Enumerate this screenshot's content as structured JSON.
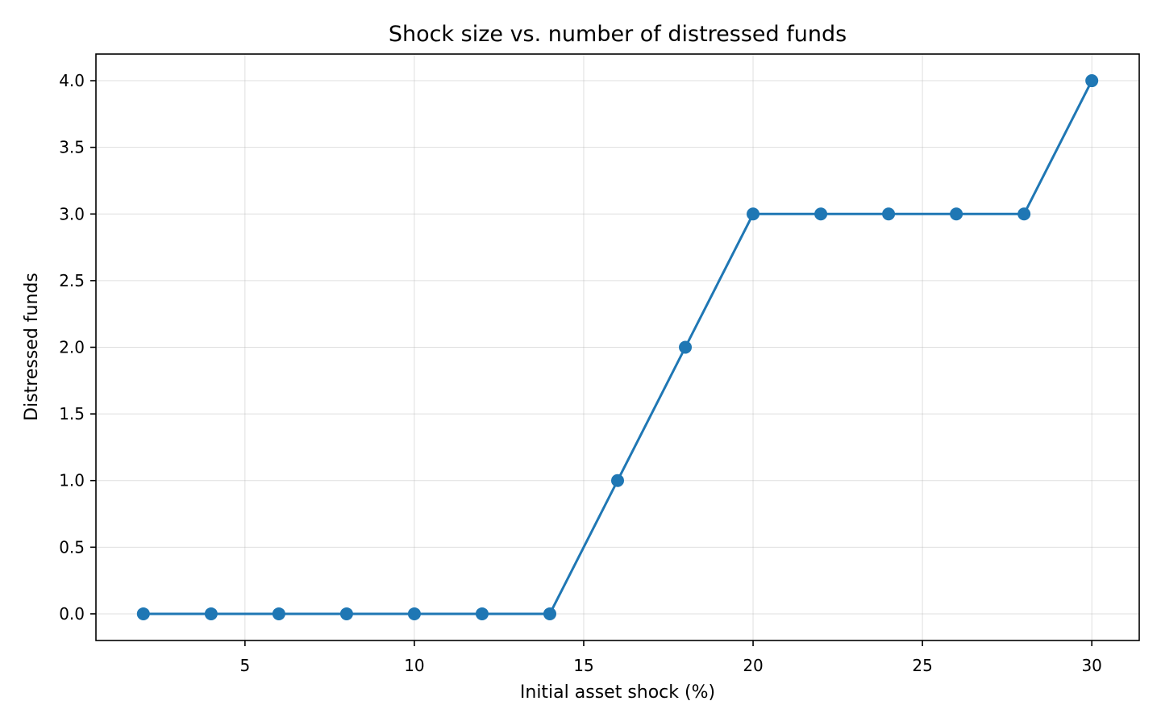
{
  "chart_data": {
    "type": "line",
    "title": "Shock size vs. number of distressed funds",
    "xlabel": "Initial asset shock (%)",
    "ylabel": "Distressed funds",
    "xlim": [
      0.6,
      31.4
    ],
    "ylim": [
      -0.2,
      4.2
    ],
    "x_ticks": [
      5,
      10,
      15,
      20,
      25,
      30
    ],
    "x_tick_labels": [
      "5",
      "10",
      "15",
      "20",
      "25",
      "30"
    ],
    "y_ticks": [
      0.0,
      0.5,
      1.0,
      1.5,
      2.0,
      2.5,
      3.0,
      3.5,
      4.0
    ],
    "y_tick_labels": [
      "0.0",
      "0.5",
      "1.0",
      "1.5",
      "2.0",
      "2.5",
      "3.0",
      "3.5",
      "4.0"
    ],
    "grid": true,
    "legend": "none",
    "series": [
      {
        "color": "#1f77b4",
        "marker": "circle",
        "x": [
          2,
          4,
          6,
          8,
          10,
          12,
          14,
          16,
          18,
          20,
          22,
          24,
          26,
          28,
          30
        ],
        "y": [
          0,
          0,
          0,
          0,
          0,
          0,
          0,
          1,
          2,
          3,
          3,
          3,
          3,
          3,
          4
        ]
      }
    ]
  }
}
